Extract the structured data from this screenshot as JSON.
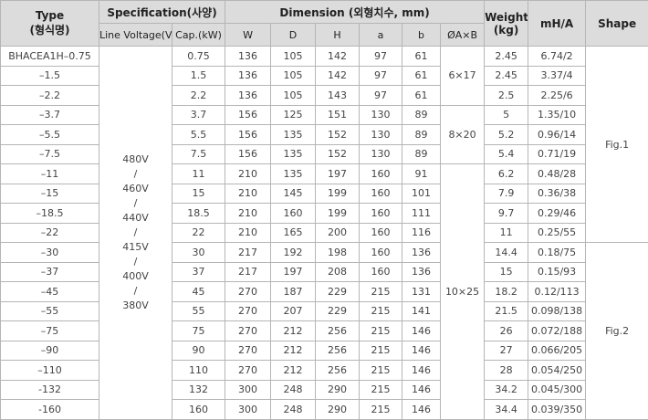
{
  "header": {
    "type": [
      "Type",
      "(형식명)"
    ],
    "specification": "Specification(사양)",
    "line_voltage": "Line Voltage(V)",
    "cap": "Cap.(kW)",
    "dimension": "Dimension (외형치수, mm)",
    "w": "W",
    "d": "D",
    "h": "H",
    "a": "a",
    "b": "b",
    "hole": "ØA×B",
    "weight": [
      "Weight",
      "(kg)"
    ],
    "mha": "mH/A",
    "shape": "Shape"
  },
  "voltage": [
    "480V",
    "/",
    "460V",
    "/",
    "440V",
    "/",
    "415V",
    "/",
    "400V",
    "/",
    "380V"
  ],
  "holes": [
    "6×17",
    "8×20",
    "10×25"
  ],
  "shapes": [
    "Fig.1",
    "Fig.2"
  ],
  "rows": [
    [
      "BHACEA1H–0.75",
      "0.75",
      "136",
      "105",
      "142",
      "97",
      "61",
      "2.45",
      "6.74/2"
    ],
    [
      "–1.5",
      "1.5",
      "136",
      "105",
      "142",
      "97",
      "61",
      "2.45",
      "3.37/4"
    ],
    [
      "–2.2",
      "2.2",
      "136",
      "105",
      "143",
      "97",
      "61",
      "2.5",
      "2.25/6"
    ],
    [
      "–3.7",
      "3.7",
      "156",
      "125",
      "151",
      "130",
      "89",
      "5",
      "1.35/10"
    ],
    [
      "–5.5",
      "5.5",
      "156",
      "135",
      "152",
      "130",
      "89",
      "5.2",
      "0.96/14"
    ],
    [
      "–7.5",
      "7.5",
      "156",
      "135",
      "152",
      "130",
      "89",
      "5.4",
      "0.71/19"
    ],
    [
      "–11",
      "11",
      "210",
      "135",
      "197",
      "160",
      "91",
      "6.2",
      "0.48/28"
    ],
    [
      "–15",
      "15",
      "210",
      "145",
      "199",
      "160",
      "101",
      "7.9",
      "0.36/38"
    ],
    [
      "–18.5",
      "18.5",
      "210",
      "160",
      "199",
      "160",
      "111",
      "9.7",
      "0.29/46"
    ],
    [
      "–22",
      "22",
      "210",
      "165",
      "200",
      "160",
      "116",
      "11",
      "0.25/55"
    ],
    [
      "–30",
      "30",
      "217",
      "192",
      "198",
      "160",
      "136",
      "14.4",
      "0.18/75"
    ],
    [
      "–37",
      "37",
      "217",
      "197",
      "208",
      "160",
      "136",
      "15",
      "0.15/93"
    ],
    [
      "–45",
      "45",
      "270",
      "187",
      "229",
      "215",
      "131",
      "18.2",
      "0.12/113"
    ],
    [
      "–55",
      "55",
      "270",
      "207",
      "229",
      "215",
      "141",
      "21.5",
      "0.098/138"
    ],
    [
      "–75",
      "75",
      "270",
      "212",
      "256",
      "215",
      "146",
      "26",
      "0.072/188"
    ],
    [
      "–90",
      "90",
      "270",
      "212",
      "256",
      "215",
      "146",
      "27",
      "0.066/205"
    ],
    [
      "–110",
      "110",
      "270",
      "212",
      "256",
      "215",
      "146",
      "28",
      "0.054/250"
    ],
    [
      "-132",
      "132",
      "300",
      "248",
      "290",
      "215",
      "146",
      "34.2",
      "0.045/300"
    ],
    [
      "-160",
      "160",
      "300",
      "248",
      "290",
      "215",
      "146",
      "34.4",
      "0.039/350"
    ]
  ]
}
